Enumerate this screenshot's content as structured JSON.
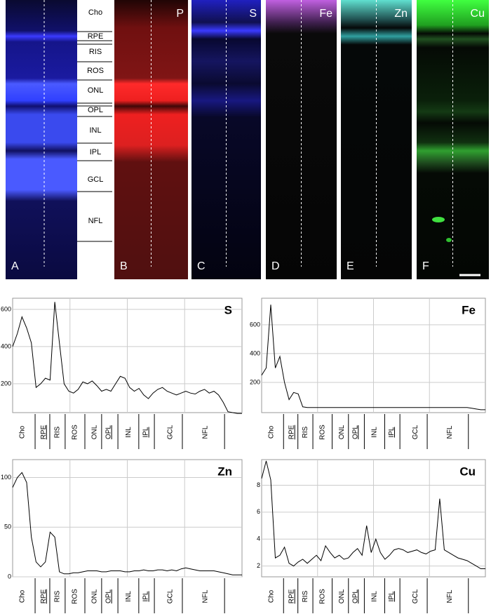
{
  "figure": {
    "panels": [
      {
        "letter": "A"
      },
      {
        "letter": "B",
        "element": "P"
      },
      {
        "letter": "C",
        "element": "S"
      },
      {
        "letter": "D",
        "element": "Fe"
      },
      {
        "letter": "E",
        "element": "Zn"
      },
      {
        "letter": "F",
        "element": "Cu"
      }
    ],
    "layers": [
      "Cho",
      "RPE",
      "RIS",
      "ROS",
      "ONL",
      "OPL",
      "INL",
      "IPL",
      "GCL",
      "NFL"
    ]
  },
  "chart_data": [
    {
      "type": "line",
      "title": "S",
      "ylim": [
        45,
        660
      ],
      "yticks": [
        200,
        400,
        600
      ],
      "grid": true,
      "color": "#000000",
      "layer_labels": [
        "Cho",
        "RPE",
        "RIS",
        "ROS",
        "ONL",
        "OPL",
        "INL",
        "IPL",
        "GCL",
        "NFL"
      ],
      "values": [
        400,
        470,
        560,
        500,
        420,
        180,
        200,
        230,
        220,
        640,
        420,
        200,
        160,
        150,
        170,
        210,
        200,
        215,
        190,
        160,
        170,
        160,
        200,
        240,
        230,
        180,
        160,
        175,
        140,
        120,
        150,
        170,
        180,
        160,
        150,
        140,
        150,
        160,
        150,
        145,
        160,
        170,
        150,
        160,
        140,
        100,
        50,
        45,
        40,
        40
      ]
    },
    {
      "type": "line",
      "title": "Fe",
      "ylim": [
        -10,
        785
      ],
      "yticks": [
        200,
        400,
        600
      ],
      "grid": true,
      "color": "#000000",
      "layer_labels": [
        "Cho",
        "RPE",
        "RIS",
        "ROS",
        "ONL",
        "OPL",
        "INL",
        "IPL",
        "GCL",
        "NFL"
      ],
      "values": [
        250,
        300,
        740,
        300,
        380,
        200,
        80,
        130,
        120,
        30,
        25,
        25,
        25,
        25,
        25,
        25,
        25,
        25,
        25,
        25,
        25,
        25,
        25,
        25,
        25,
        25,
        25,
        25,
        25,
        25,
        25,
        25,
        25,
        25,
        25,
        25,
        25,
        25,
        25,
        25,
        25,
        25,
        25,
        25,
        25,
        25,
        20,
        15,
        10,
        10
      ]
    },
    {
      "type": "line",
      "title": "Zn",
      "ylim": [
        0,
        118
      ],
      "yticks": [
        0,
        50,
        100
      ],
      "grid": true,
      "color": "#000000",
      "layer_labels": [
        "Cho",
        "RPE",
        "RIS",
        "ROS",
        "ONL",
        "OPL",
        "INL",
        "IPL",
        "GCL",
        "NFL"
      ],
      "values": [
        90,
        100,
        105,
        95,
        40,
        15,
        10,
        15,
        45,
        40,
        5,
        3,
        3,
        4,
        4,
        5,
        6,
        6,
        6,
        5,
        5,
        6,
        6,
        6,
        5,
        5,
        6,
        6,
        7,
        6,
        6,
        7,
        7,
        6,
        7,
        6,
        8,
        9,
        8,
        7,
        6,
        6,
        6,
        6,
        5,
        4,
        3,
        2,
        2,
        2
      ]
    },
    {
      "type": "line",
      "title": "Cu",
      "ylim": [
        1.2,
        9.9
      ],
      "yticks": [
        2,
        4,
        6,
        8
      ],
      "grid": true,
      "color": "#000000",
      "layer_labels": [
        "Cho",
        "RPE",
        "RIS",
        "ROS",
        "ONL",
        "OPL",
        "INL",
        "IPL",
        "GCL",
        "NFL"
      ],
      "values": [
        8.5,
        9.8,
        8.4,
        2.6,
        2.8,
        3.4,
        2.2,
        2,
        2.3,
        2.5,
        2.2,
        2.5,
        2.8,
        2.4,
        3.5,
        3,
        2.6,
        2.8,
        2.5,
        2.6,
        3,
        3.3,
        2.8,
        5,
        3,
        4,
        3,
        2.5,
        2.8,
        3.2,
        3.3,
        3.2,
        3,
        3.1,
        3.2,
        3,
        2.9,
        3.1,
        3.2,
        7,
        3.2,
        3,
        2.8,
        2.6,
        2.5,
        2.4,
        2.2,
        2,
        1.8,
        1.8
      ]
    }
  ]
}
